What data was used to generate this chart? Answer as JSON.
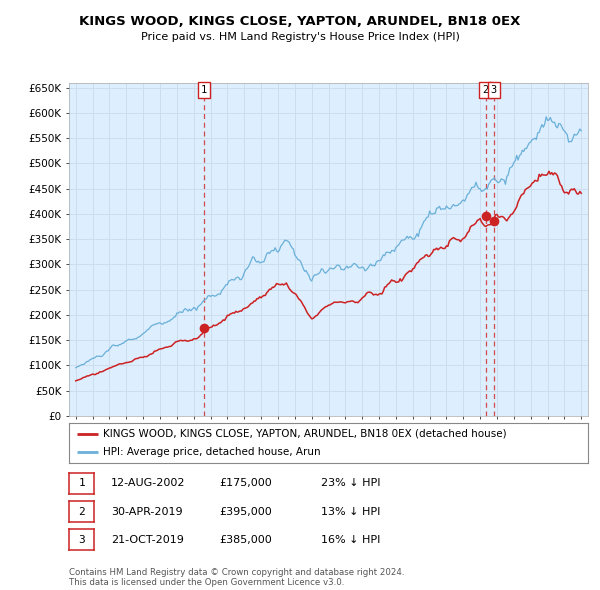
{
  "title": "KINGS WOOD, KINGS CLOSE, YAPTON, ARUNDEL, BN18 0EX",
  "subtitle": "Price paid vs. HM Land Registry's House Price Index (HPI)",
  "legend_line1": "KINGS WOOD, KINGS CLOSE, YAPTON, ARUNDEL, BN18 0EX (detached house)",
  "legend_line2": "HPI: Average price, detached house, Arun",
  "transactions": [
    {
      "label": "1",
      "date": "12-AUG-2002",
      "price": 175000,
      "hpi_diff": "23% ↓ HPI",
      "x": 2002.62
    },
    {
      "label": "2",
      "date": "30-APR-2019",
      "price": 395000,
      "hpi_diff": "13% ↓ HPI",
      "x": 2019.33
    },
    {
      "label": "3",
      "date": "21-OCT-2019",
      "price": 385000,
      "hpi_diff": "16% ↓ HPI",
      "x": 2019.81
    }
  ],
  "hpi_color": "#6ab0d8",
  "price_color": "#cc2222",
  "marker_color": "#cc2222",
  "grid_color": "#ccddee",
  "bg_chart": "#ddeeff",
  "background_color": "#ffffff",
  "ylim": [
    0,
    660000
  ],
  "xlim": [
    1994.6,
    2025.4
  ],
  "yticks": [
    0,
    50000,
    100000,
    150000,
    200000,
    250000,
    300000,
    350000,
    400000,
    450000,
    500000,
    550000,
    600000,
    650000
  ],
  "ytick_labels": [
    "£0",
    "£50K",
    "£100K",
    "£150K",
    "£200K",
    "£250K",
    "£300K",
    "£350K",
    "£400K",
    "£450K",
    "£500K",
    "£550K",
    "£600K",
    "£650K"
  ],
  "xticks": [
    1995,
    1996,
    1997,
    1998,
    1999,
    2000,
    2001,
    2002,
    2003,
    2004,
    2005,
    2006,
    2007,
    2008,
    2009,
    2010,
    2011,
    2012,
    2013,
    2014,
    2015,
    2016,
    2017,
    2018,
    2019,
    2020,
    2021,
    2022,
    2023,
    2024,
    2025
  ],
  "footnote": "Contains HM Land Registry data © Crown copyright and database right 2024.\nThis data is licensed under the Open Government Licence v3.0."
}
